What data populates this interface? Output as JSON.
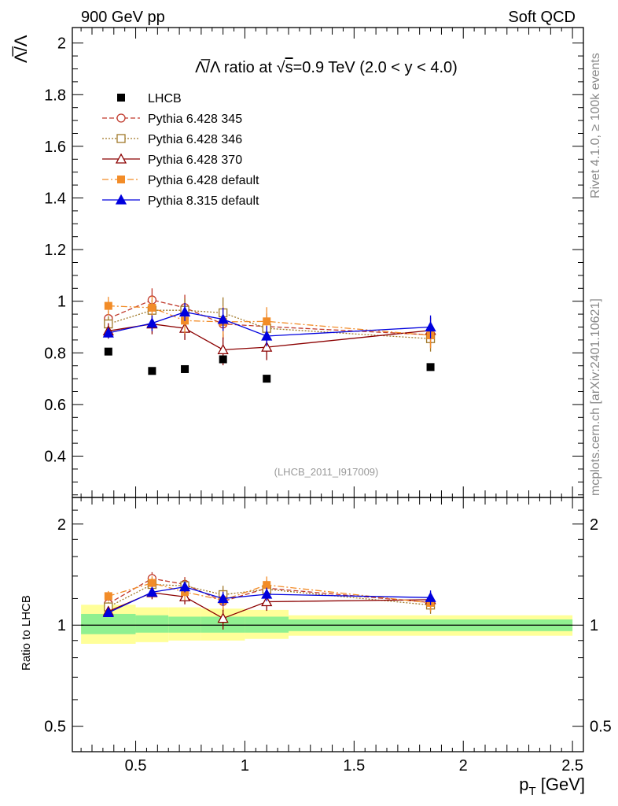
{
  "header": {
    "left": "900 GeV pp",
    "right": "Soft QCD"
  },
  "side_labels": {
    "rivet": "Rivet 4.1.0, ≥ 100k events",
    "mcplots": "mcplots.cern.ch [arXiv:2401.10621]"
  },
  "colors": {
    "lhcb": "#000000",
    "p345": "#c0392b",
    "p346": "#a07828",
    "p370": "#8b0000",
    "p6def": "#f28c28",
    "p8": "#0000dd",
    "band_green": "#90f090",
    "band_yellow": "#ffff99"
  },
  "chart_data": [
    {
      "type": "scatter",
      "title_parts": [
        "Λ̅/Λ ratio at ",
        "√",
        "s",
        "=0.9 TeV (2.0 < y < 4.0)"
      ],
      "ylabel": "Λ̅/Λ",
      "xlabel_main": "p",
      "xlabel_sub": "T",
      "xlabel_unit": " [GeV]",
      "analysis_tag": "(LHCB_2011_I917009)",
      "xlim": [
        0.21,
        2.55
      ],
      "ylim": [
        0.24,
        2.06
      ],
      "x_ticks": [
        0.5,
        1,
        1.5,
        2,
        2.5
      ],
      "x_tick_labels": [
        "0.5",
        "1",
        "1.5",
        "2",
        "2.5"
      ],
      "y_ticks": [
        0.4,
        0.6,
        0.8,
        1,
        1.2,
        1.4,
        1.6,
        1.8,
        2
      ],
      "y_tick_labels": [
        "0.4",
        "0.6",
        "0.8",
        "1",
        "1.2",
        "1.4",
        "1.6",
        "1.8",
        "2"
      ],
      "x": [
        0.375,
        0.575,
        0.725,
        0.9,
        1.1,
        1.85
      ],
      "series": [
        {
          "key": "lhcb",
          "name": "LHCB",
          "marker": "square-filled",
          "line": "none",
          "values": [
            0.805,
            0.73,
            0.737,
            0.775,
            0.7,
            0.745
          ],
          "errors": [
            0.005,
            0.005,
            0.005,
            0.005,
            0.005,
            0.005
          ]
        },
        {
          "key": "p345",
          "name": "Pythia 6.428 345",
          "marker": "circle-open",
          "line": "dashed",
          "values": [
            0.933,
            1.005,
            0.975,
            0.912,
            0.902,
            0.87
          ],
          "errors": [
            0.03,
            0.045,
            0.05,
            0.06,
            0.05,
            0.05
          ]
        },
        {
          "key": "p346",
          "name": "Pythia 6.428 346",
          "marker": "square-open",
          "line": "dotted",
          "values": [
            0.912,
            0.965,
            0.965,
            0.955,
            0.895,
            0.855
          ],
          "errors": [
            0.03,
            0.04,
            0.045,
            0.06,
            0.05,
            0.05
          ]
        },
        {
          "key": "p370",
          "name": "Pythia 6.428 370",
          "marker": "triangle-open",
          "line": "solid",
          "values": [
            0.885,
            0.912,
            0.895,
            0.812,
            0.822,
            0.887
          ],
          "errors": [
            0.03,
            0.04,
            0.045,
            0.06,
            0.05,
            0.05
          ]
        },
        {
          "key": "p6def",
          "name": "Pythia 6.428 default",
          "marker": "square-filled",
          "line": "dashdot",
          "values": [
            0.982,
            0.975,
            0.925,
            0.92,
            0.922,
            0.868
          ],
          "errors": [
            0.035,
            0.045,
            0.05,
            0.06,
            0.055,
            0.05
          ]
        },
        {
          "key": "p8",
          "name": "Pythia 8.315 default",
          "marker": "triangle-filled",
          "line": "solid",
          "values": [
            0.877,
            0.915,
            0.958,
            0.93,
            0.865,
            0.9
          ],
          "errors": [
            0.02,
            0.03,
            0.035,
            0.045,
            0.04,
            0.045
          ]
        }
      ]
    },
    {
      "type": "scatter",
      "ylabel": "Ratio to LHCB",
      "ylim_log": [
        0.42,
        2.4
      ],
      "y_ticks": [
        0.5,
        1,
        2
      ],
      "y_tick_labels": [
        "0.5",
        "1",
        "2"
      ],
      "bands": [
        {
          "x0": 0.25,
          "x1": 0.5,
          "green": [
            0.94,
            1.08
          ],
          "yellow": [
            0.88,
            1.15
          ]
        },
        {
          "x0": 0.5,
          "x1": 0.65,
          "green": [
            0.95,
            1.07
          ],
          "yellow": [
            0.89,
            1.13
          ]
        },
        {
          "x0": 0.65,
          "x1": 0.8,
          "green": [
            0.95,
            1.06
          ],
          "yellow": [
            0.9,
            1.13
          ]
        },
        {
          "x0": 0.8,
          "x1": 1.0,
          "green": [
            0.95,
            1.06
          ],
          "yellow": [
            0.9,
            1.12
          ]
        },
        {
          "x0": 1.0,
          "x1": 1.2,
          "green": [
            0.95,
            1.06
          ],
          "yellow": [
            0.91,
            1.11
          ]
        },
        {
          "x0": 1.2,
          "x1": 2.5,
          "green": [
            0.96,
            1.04
          ],
          "yellow": [
            0.93,
            1.07
          ]
        }
      ]
    }
  ]
}
